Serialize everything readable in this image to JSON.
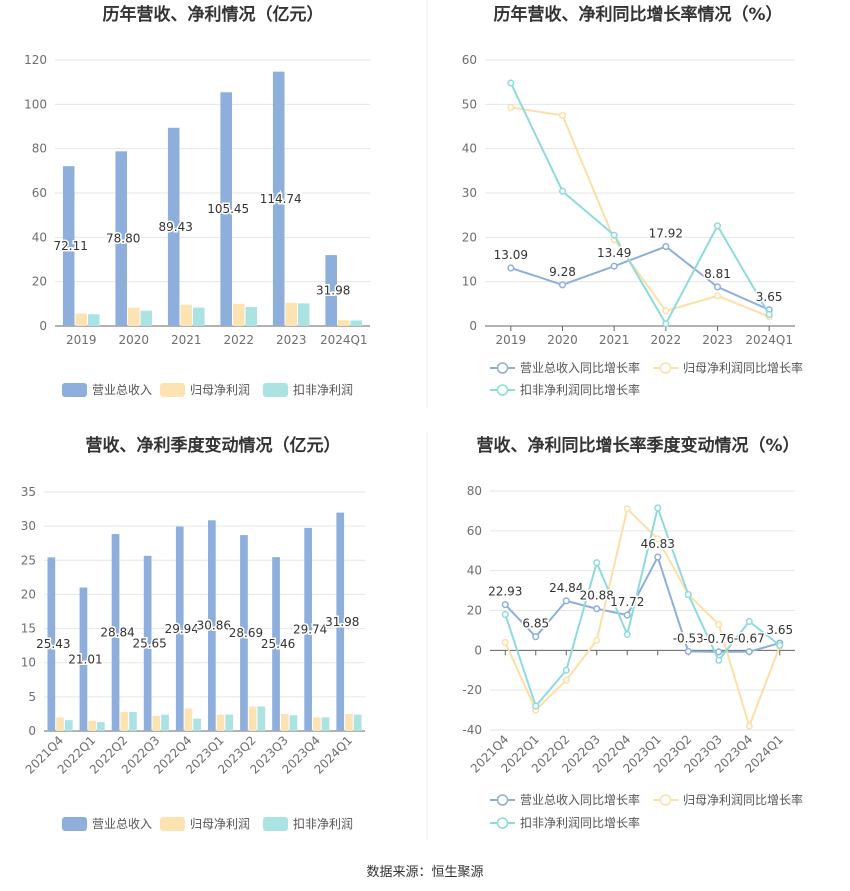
{
  "colors": {
    "revenue": "#8eaedc",
    "net": "#fde3b2",
    "deducted": "#abe3e3",
    "revenue_line": "#8eaedc",
    "net_line": "#fddfa6",
    "deducted_line": "#8fdbdb",
    "grid": "#e6e6e6",
    "axis": "#666666"
  },
  "source_text": "数据来源：恒生聚源",
  "chart_data": [
    {
      "type": "bar",
      "title": "历年营收、净利情况（亿元）",
      "categories": [
        "2019",
        "2020",
        "2021",
        "2022",
        "2023",
        "2024Q1"
      ],
      "ylim": [
        0,
        120
      ],
      "yticks": [
        0,
        20,
        40,
        60,
        80,
        100,
        120
      ],
      "series": [
        {
          "name": "营业总收入",
          "values": [
            72.11,
            78.8,
            89.43,
            105.45,
            114.74,
            31.98
          ],
          "labels": [
            "72.11",
            "78.80",
            "89.43",
            "105.45",
            "114.74",
            "31.98"
          ]
        },
        {
          "name": "归母净利润",
          "values": [
            5.6,
            8.2,
            9.6,
            10.0,
            10.5,
            2.6
          ]
        },
        {
          "name": "扣非净利润",
          "values": [
            5.3,
            6.9,
            8.3,
            8.6,
            10.2,
            2.5
          ]
        }
      ]
    },
    {
      "type": "line",
      "title": "历年营收、净利同比增长率情况（%）",
      "categories": [
        "2019",
        "2020",
        "2021",
        "2022",
        "2023",
        "2024Q1"
      ],
      "ylim": [
        0,
        60
      ],
      "yticks": [
        0,
        10,
        20,
        30,
        40,
        50,
        60
      ],
      "series": [
        {
          "name": "营业总收入同比增长率",
          "values": [
            13.09,
            9.28,
            13.49,
            17.92,
            8.81,
            3.65
          ],
          "labels": [
            "13.09",
            "9.28",
            "13.49",
            "17.92",
            "8.81",
            "3.65"
          ]
        },
        {
          "name": "归母净利润同比增长率",
          "values": [
            49.3,
            47.5,
            19.5,
            3.4,
            6.8,
            2.1
          ]
        },
        {
          "name": "扣非净利润同比增长率",
          "values": [
            54.8,
            30.4,
            20.5,
            0.5,
            22.6,
            2.6
          ]
        }
      ]
    },
    {
      "type": "bar",
      "title": "营收、净利季度变动情况（亿元）",
      "categories": [
        "2021Q4",
        "2022Q1",
        "2022Q2",
        "2022Q3",
        "2022Q4",
        "2023Q1",
        "2023Q2",
        "2023Q3",
        "2023Q4",
        "2024Q1"
      ],
      "ylim": [
        0,
        35
      ],
      "yticks": [
        0,
        5,
        10,
        15,
        20,
        25,
        30,
        35
      ],
      "series": [
        {
          "name": "营业总收入",
          "values": [
            25.43,
            21.01,
            28.84,
            25.65,
            29.94,
            30.86,
            28.69,
            25.46,
            29.74,
            31.98
          ],
          "labels": [
            "25.43",
            "21.01",
            "28.84",
            "25.65",
            "29.94",
            "30.86",
            "28.69",
            "25.46",
            "29.74",
            "31.98"
          ]
        },
        {
          "name": "归母净利润",
          "values": [
            2.0,
            1.5,
            2.8,
            2.2,
            3.3,
            2.4,
            3.6,
            2.5,
            2.0,
            2.5
          ]
        },
        {
          "name": "扣非净利润",
          "values": [
            1.6,
            1.3,
            2.8,
            2.4,
            1.8,
            2.4,
            3.6,
            2.3,
            2.0,
            2.4
          ]
        }
      ]
    },
    {
      "type": "line",
      "title": "营收、净利同比增长率季度变动情况（%）",
      "categories": [
        "2021Q4",
        "2022Q1",
        "2022Q2",
        "2022Q3",
        "2022Q4",
        "2023Q1",
        "2023Q2",
        "2023Q3",
        "2023Q4",
        "2024Q1"
      ],
      "ylim": [
        -40,
        80
      ],
      "yticks": [
        -40,
        -20,
        0,
        20,
        40,
        60,
        80
      ],
      "series": [
        {
          "name": "营业总收入同比增长率",
          "values": [
            22.93,
            6.85,
            24.84,
            20.88,
            17.72,
            46.83,
            -0.53,
            -0.76,
            -0.67,
            3.65
          ],
          "labels": [
            "22.93",
            "6.85",
            "24.84",
            "20.88",
            "17.72",
            "46.83",
            "-0.53",
            "-0.76",
            "-0.67",
            "3.65"
          ]
        },
        {
          "name": "归母净利润同比增长率",
          "values": [
            4.0,
            -30.0,
            -15.0,
            5.0,
            71.0,
            56.0,
            28.0,
            13.0,
            -38.0,
            2.0
          ]
        },
        {
          "name": "扣非净利润同比增长率",
          "values": [
            18.0,
            -28.0,
            -10.0,
            44.0,
            8.0,
            71.5,
            28.0,
            -5.0,
            14.5,
            2.5
          ]
        }
      ]
    }
  ]
}
